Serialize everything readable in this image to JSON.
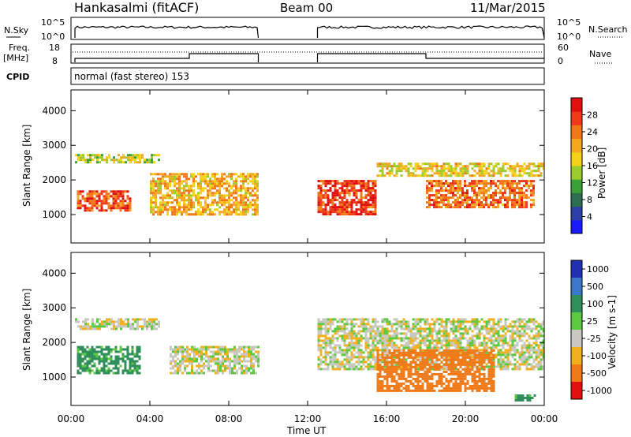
{
  "header": {
    "station": "Hankasalmi (fitACF)",
    "beam": "Beam 00",
    "date": "11/Mar/2015"
  },
  "strip": {
    "nsky_label": "N.Sky",
    "nsky_top": "10^5",
    "nsky_bottom": "10^0",
    "nsearch_label": "N.Search",
    "freq_label_1": "Freq.",
    "freq_label_2": "[MHz]",
    "freq_top": "18",
    "freq_bottom": "8",
    "nave_label": "Nave",
    "nave_top": "60",
    "nave_bottom": "0",
    "cpid_label": "CPID",
    "cpid_text": "normal (fast stereo) 153"
  },
  "axes": {
    "ylabel": "Slant Range [km]",
    "xlabel": "Time UT",
    "yticks": [
      "1000",
      "2000",
      "3000",
      "4000"
    ],
    "xticks": [
      "00:00",
      "04:00",
      "08:00",
      "12:00",
      "16:00",
      "20:00",
      "00:00"
    ]
  },
  "colorbar_power": {
    "label": "Power [dB]",
    "ticks": [
      "4",
      "8",
      "12",
      "16",
      "20",
      "24",
      "28"
    ],
    "colors": [
      "#1a1aff",
      "#2c3fa6",
      "#2e6e50",
      "#3aa03a",
      "#9ccc2c",
      "#f4d21a",
      "#f5a623",
      "#f07818",
      "#ee3a18",
      "#e01010"
    ]
  },
  "colorbar_velocity": {
    "label": "Velocity [m s-1]",
    "ticks": [
      "1000",
      "500",
      "100",
      "25",
      "-25",
      "-100",
      "-500",
      "-1000"
    ],
    "colors": [
      "#2030b0",
      "#3a78c8",
      "#2f8f5a",
      "#5cc940",
      "#c8c8c0",
      "#f0b020",
      "#f07a18",
      "#e01010"
    ]
  },
  "chart_data": {
    "type": "heatmap",
    "x_range_hours": [
      0,
      24
    ],
    "y_range_km": [
      180,
      4600
    ],
    "data_gap_hours": [
      9.5,
      12.5
    ],
    "nsky_segments": [
      {
        "start_hr": 0.2,
        "end_hr": 9.5,
        "level": "high"
      },
      {
        "start_hr": 12.5,
        "end_hr": 24,
        "level": "high"
      }
    ],
    "nave_steps": [
      {
        "start_hr": 0.2,
        "end_hr": 6.0,
        "value": "low"
      },
      {
        "start_hr": 6.0,
        "end_hr": 9.5,
        "value": "high"
      },
      {
        "start_hr": 12.5,
        "end_hr": 18.0,
        "value": "high"
      },
      {
        "start_hr": 18.0,
        "end_hr": 24,
        "value": "low"
      }
    ],
    "frequency_mhz_approx": 12.5,
    "power_features": [
      {
        "name": "",
        "start_hr": 0.2,
        "end_hr": 4.5,
        "range_km": [
          2500,
          2750
        ],
        "power_db": 16
      },
      {
        "name": "",
        "start_hr": 0.3,
        "end_hr": 3.0,
        "range_km": [
          1100,
          1700
        ],
        "power_db": 26
      },
      {
        "name": "",
        "start_hr": 4.0,
        "end_hr": 9.5,
        "range_km": [
          1000,
          2200
        ],
        "power_db": 20
      },
      {
        "name": "",
        "start_hr": 12.5,
        "end_hr": 15.5,
        "range_km": [
          1000,
          2000
        ],
        "power_db": 27
      },
      {
        "name": "",
        "start_hr": 15.5,
        "end_hr": 24,
        "range_km": [
          2100,
          2500
        ],
        "power_db": 18
      },
      {
        "name": "",
        "start_hr": 18.0,
        "end_hr": 23.5,
        "range_km": [
          1200,
          2000
        ],
        "power_db": 24
      }
    ],
    "velocity_features": [
      {
        "name": "",
        "start_hr": 0.2,
        "end_hr": 4.5,
        "range_km": [
          2400,
          2700
        ],
        "velocity_ms": 0
      },
      {
        "name": "",
        "start_hr": 0.3,
        "end_hr": 3.5,
        "range_km": [
          1100,
          1900
        ],
        "velocity_ms": 100
      },
      {
        "name": "",
        "start_hr": 5.0,
        "end_hr": 9.5,
        "range_km": [
          1100,
          1900
        ],
        "velocity_ms": 0
      },
      {
        "name": "",
        "start_hr": 12.5,
        "end_hr": 24,
        "range_km": [
          1200,
          2700
        ],
        "velocity_ms": 0
      },
      {
        "name": "",
        "start_hr": 15.5,
        "end_hr": 21.5,
        "range_km": [
          600,
          1800
        ],
        "velocity_ms": -300
      },
      {
        "name": "",
        "start_hr": 22.5,
        "end_hr": 23.5,
        "range_km": [
          300,
          500
        ],
        "velocity_ms": 100
      }
    ]
  }
}
